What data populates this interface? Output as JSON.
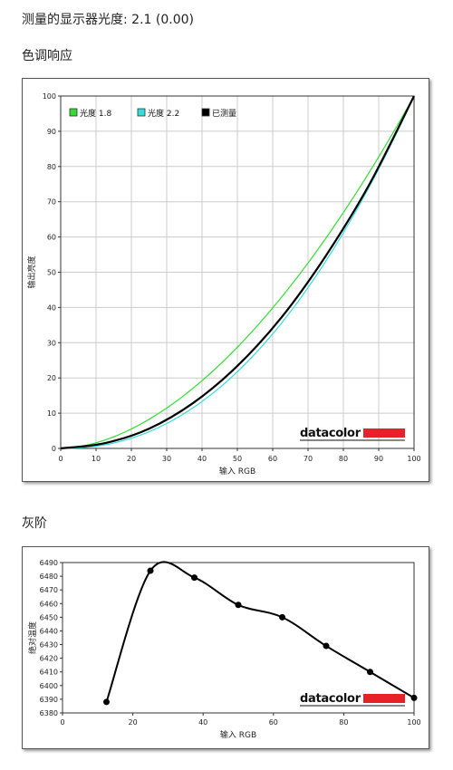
{
  "gamma_heading": {
    "label": "测量的显示器光度:",
    "value": "2.1 (0.00)"
  },
  "colors": {
    "green": "#33dd33",
    "cyan": "#33dddd",
    "black": "#000000",
    "brand_red": "#e8202a",
    "grid": "#cccccc"
  },
  "chart_data": [
    {
      "section_title": "色调响应",
      "type": "line",
      "xlabel": "输入 RGB",
      "ylabel": "输出亮度",
      "xlim": [
        0,
        100
      ],
      "ylim": [
        0,
        100
      ],
      "xticks": [
        0,
        10,
        20,
        30,
        40,
        50,
        60,
        70,
        80,
        90,
        100
      ],
      "yticks": [
        0,
        10,
        20,
        30,
        40,
        50,
        60,
        70,
        80,
        90,
        100
      ],
      "grid": true,
      "legend_position": "top-left",
      "brand": "datacolor",
      "series": [
        {
          "name": "光度 1.8",
          "color": "#33dd33",
          "gamma": 1.8
        },
        {
          "name": "光度 2.2",
          "color": "#33dddd",
          "gamma": 2.2
        },
        {
          "name": "已测量",
          "color": "#000000",
          "x": [
            0,
            12.5,
            25,
            37.5,
            50,
            62.5,
            75,
            87.5,
            100
          ],
          "y": [
            0,
            1.5,
            5.6,
            12.9,
            23.4,
            37.2,
            54.6,
            75.2,
            100
          ]
        }
      ]
    },
    {
      "section_title": "灰阶",
      "type": "line",
      "xlabel": "输入 RGB",
      "ylabel": "绝对温度",
      "xlim": [
        0,
        100
      ],
      "ylim": [
        6380,
        6490
      ],
      "xticks": [
        0,
        20,
        40,
        60,
        80,
        100
      ],
      "yticks": [
        6380,
        6390,
        6400,
        6410,
        6420,
        6430,
        6440,
        6450,
        6460,
        6470,
        6480,
        6490
      ],
      "grid": false,
      "brand": "datacolor",
      "series": [
        {
          "name": "",
          "color": "#000000",
          "x": [
            12.5,
            25,
            37.5,
            50,
            62.5,
            75,
            87.5,
            100
          ],
          "y": [
            6388,
            6484,
            6479,
            6459,
            6450,
            6429,
            6410,
            6391
          ]
        }
      ]
    }
  ]
}
